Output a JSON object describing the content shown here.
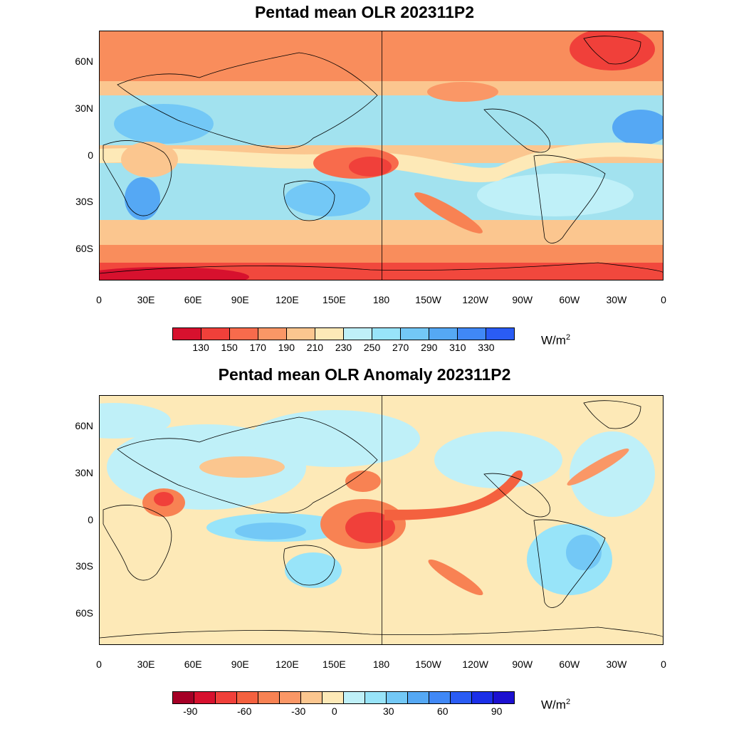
{
  "panels": [
    {
      "title": "Pentad mean OLR 202311P2",
      "colorbar": {
        "colors": [
          "#d7112e",
          "#f0403a",
          "#f86b4c",
          "#fa9766",
          "#fbc68f",
          "#fde9b7",
          "#bff0f8",
          "#98e4f9",
          "#73c8f6",
          "#55a8f4",
          "#4088f6",
          "#2a5cf4"
        ],
        "tick_labels": [
          "130",
          "150",
          "170",
          "190",
          "210",
          "230",
          "250",
          "270",
          "290",
          "310",
          "330"
        ],
        "unit": "W/m",
        "unit_sup": "2"
      }
    },
    {
      "title": "Pentad mean OLR Anomaly 202311P2",
      "colorbar": {
        "colors": [
          "#a50026",
          "#d7112e",
          "#f0403a",
          "#f4613f",
          "#f88253",
          "#fa9766",
          "#fbc68f",
          "#fde9b7",
          "#bff0f8",
          "#98e4f9",
          "#73c8f6",
          "#55a8f4",
          "#4088f6",
          "#2a5cf4",
          "#1b2fe8",
          "#1c10d0"
        ],
        "tick_labels": [
          "-90",
          "",
          "",
          "-60",
          "",
          "",
          "-30",
          "",
          "0",
          "",
          "",
          "30",
          "",
          "",
          "60",
          "",
          "",
          "90"
        ],
        "unit": "W/m",
        "unit_sup": "2"
      }
    }
  ],
  "lat_labels": [
    "60N",
    "30N",
    "0",
    "30S",
    "60S"
  ],
  "lon_labels": [
    "0",
    "30E",
    "60E",
    "90E",
    "120E",
    "150E",
    "180",
    "150W",
    "120W",
    "90W",
    "60W",
    "30W",
    "0"
  ],
  "lat_values": [
    60,
    30,
    0,
    -30,
    -60
  ],
  "lon_values": [
    0,
    30,
    60,
    90,
    120,
    150,
    180,
    210,
    240,
    270,
    300,
    330,
    360
  ]
}
